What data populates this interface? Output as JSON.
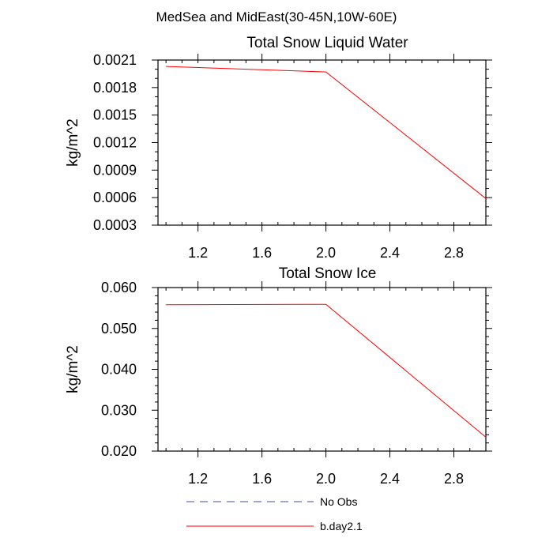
{
  "suptitle": "MedSea and MidEast(30-45N,10W-60E)",
  "colors": {
    "obs": "#4a4aa8",
    "model": "#ff0000"
  },
  "legend": [
    {
      "label": "No Obs",
      "style": "dashed",
      "color": "#4a4aa8"
    },
    {
      "label": "b.day2.1",
      "style": "solid",
      "color": "#ff0000"
    }
  ],
  "chart_data": [
    {
      "type": "line",
      "title": "Total Snow Liquid Water",
      "xlabel": "",
      "ylabel": "kg/m^2",
      "xlim": [
        0.95,
        3.0
      ],
      "ylim": [
        0.0003,
        0.0021
      ],
      "xticks": [
        1.2,
        1.6,
        2.0,
        2.4,
        2.8
      ],
      "xtick_labels": [
        "1.2",
        "1.6",
        "2.0",
        "2.4",
        "2.8"
      ],
      "yticks": [
        0.0003,
        0.0006,
        0.0009,
        0.0012,
        0.0015,
        0.0018,
        0.0021
      ],
      "ytick_labels": [
        "0.0003",
        "0.0006",
        "0.0009",
        "0.0012",
        "0.0015",
        "0.0018",
        "0.0021"
      ],
      "series": [
        {
          "name": "b.day2.1",
          "x": [
            1.0,
            2.0,
            3.0
          ],
          "y": [
            0.00203,
            0.00197,
            0.00059
          ]
        }
      ]
    },
    {
      "type": "line",
      "title": "Total Snow Ice",
      "xlabel": "",
      "ylabel": "kg/m^2",
      "xlim": [
        0.95,
        3.0
      ],
      "ylim": [
        0.02,
        0.06
      ],
      "xticks": [
        1.2,
        1.6,
        2.0,
        2.4,
        2.8
      ],
      "xtick_labels": [
        "1.2",
        "1.6",
        "2.0",
        "2.4",
        "2.8"
      ],
      "yticks": [
        0.02,
        0.03,
        0.04,
        0.05,
        0.06
      ],
      "ytick_labels": [
        "0.020",
        "0.030",
        "0.040",
        "0.050",
        "0.060"
      ],
      "series": [
        {
          "name": "b.day2.1",
          "x": [
            1.0,
            2.0,
            3.0
          ],
          "y": [
            0.0558,
            0.0559,
            0.0234
          ]
        }
      ]
    }
  ]
}
